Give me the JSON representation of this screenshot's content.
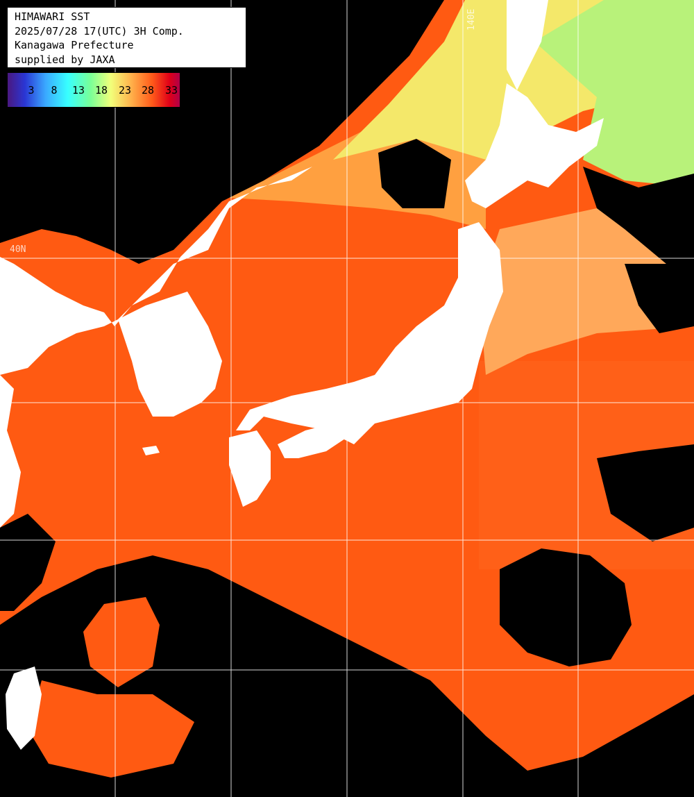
{
  "info": {
    "line1": "HIMAWARI SST",
    "line2": "2025/07/28 17(UTC) 3H Comp.",
    "line3": "Kanagawa Prefecture",
    "line4": "supplied by JAXA"
  },
  "scale": {
    "labels": [
      "3",
      "8",
      "13",
      "18",
      "23",
      "28",
      "33"
    ]
  },
  "grid": {
    "lat_label": "40N",
    "lon_label": "140E"
  },
  "colors": {
    "land": "#ffffff",
    "cloud_no_data": "#000000",
    "grid_line": "#ffffff",
    "warm_sea": "#ff5a12",
    "cool_sea": "#ffd060",
    "cold_sea": "#a0f080"
  }
}
